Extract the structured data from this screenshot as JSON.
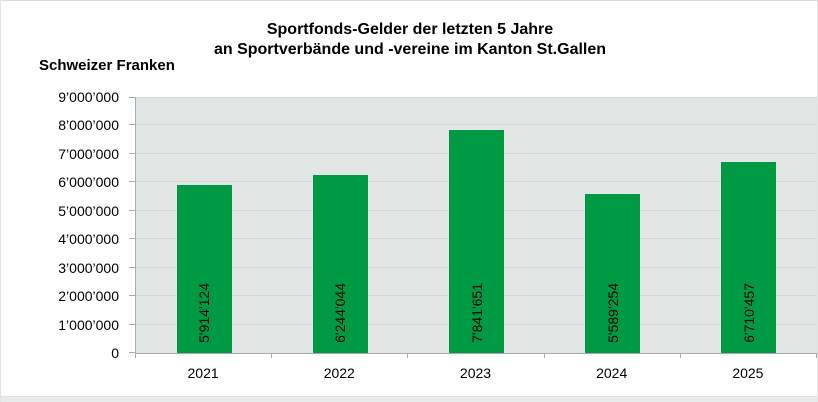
{
  "page": {
    "title": "Sportfonds-Gelder der letzten 5 Jahre\nan Sportverbände und -vereine im Kanton St.Gallen"
  },
  "chart_data": {
    "type": "bar",
    "title": "Sportfonds-Gelder der letzten 5 Jahre an Sportverbände und -vereine im Kanton St.Gallen",
    "ylabel": "Schweizer Franken",
    "xlabel": "",
    "categories": [
      "2021",
      "2022",
      "2023",
      "2024",
      "2025"
    ],
    "values": [
      5914124,
      6244044,
      7841651,
      5589254,
      6710457
    ],
    "value_labels": [
      "5'914'124",
      "6'244'044",
      "7'841'651",
      "5'589'254",
      "6'710'457"
    ],
    "ylim": [
      0,
      9000000
    ],
    "y_tick_step": 1000000,
    "y_tick_labels": [
      "0",
      "1’000’000",
      "2’000’000",
      "3’000’000",
      "4’000’000",
      "5’000’000",
      "6’000’000",
      "7’000’000",
      "8’000’000",
      "9’000’000"
    ],
    "grid": true,
    "legend": false,
    "bar_color": "#009a44",
    "plot_bg_color": "#e2e6e4",
    "grid_color": "#d4d9d7",
    "axis_color": "#a9aeac"
  }
}
